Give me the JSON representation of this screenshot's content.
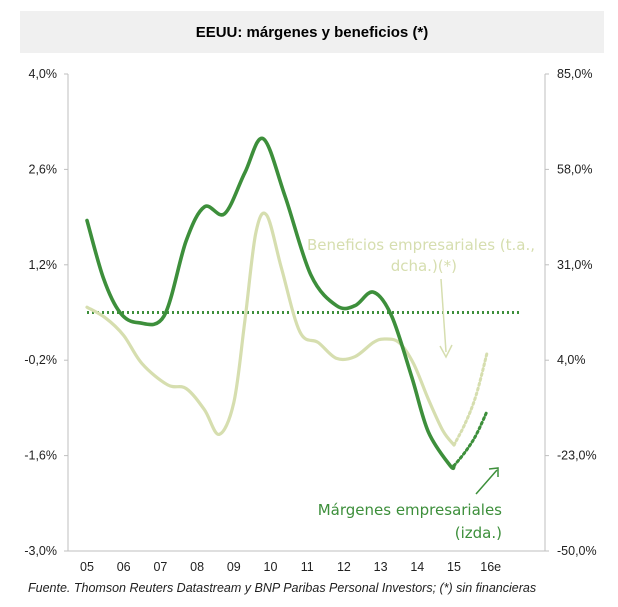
{
  "chart_data": {
    "type": "line",
    "title": "EEUU: márgenes y beneficios (*)",
    "categories": [
      "05",
      "06",
      "07",
      "08",
      "09",
      "10",
      "11",
      "12",
      "13",
      "14",
      "15",
      "16e"
    ],
    "left_axis": {
      "ylim": [
        -3.0,
        4.0
      ],
      "ticks": [
        "4,0%",
        "2,6%",
        "1,2%",
        "-0,2%",
        "-1,6%",
        "-3,0%"
      ]
    },
    "right_axis": {
      "ylim": [
        -50.0,
        85.0
      ],
      "ticks": [
        "85,0%",
        "58,0%",
        "31,0%",
        "4,0%",
        "-23,0%",
        "-50,0%"
      ]
    },
    "series": [
      {
        "name": "Márgenes empresariales (izda.)",
        "axis": "left",
        "color": "#3d8f3b",
        "x": [
          0.0,
          0.45,
          0.9,
          1.4,
          2.1,
          2.7,
          3.2,
          3.75,
          4.3,
          4.8,
          5.4,
          6.1,
          6.8,
          7.3,
          7.8,
          8.3,
          8.85,
          9.3,
          9.9,
          10.0
        ],
        "values": [
          1.85,
          1.0,
          0.5,
          0.35,
          0.45,
          1.55,
          2.05,
          1.95,
          2.55,
          3.05,
          2.2,
          1.05,
          0.6,
          0.6,
          0.8,
          0.45,
          -0.45,
          -1.25,
          -1.75,
          -1.75
        ],
        "forecast": {
          "x": [
            10.0,
            10.3,
            10.6,
            10.9
          ],
          "values": [
            -1.75,
            -1.55,
            -1.3,
            -0.95
          ]
        }
      },
      {
        "name": "Beneficios empresariales (t.a., dcha.)(*)",
        "axis": "right",
        "color": "#d6deaf",
        "x": [
          0.0,
          0.5,
          1.0,
          1.5,
          2.2,
          2.7,
          3.2,
          3.6,
          4.0,
          4.3,
          4.6,
          4.9,
          5.3,
          5.8,
          6.3,
          6.8,
          7.3,
          7.8,
          8.1,
          8.5,
          8.9,
          9.3,
          9.7,
          10.0
        ],
        "values": [
          19.0,
          16.0,
          11.0,
          3.0,
          -3.0,
          -4.0,
          -10.0,
          -17.0,
          -8.0,
          15.0,
          40.0,
          45.0,
          30.0,
          12.0,
          9.0,
          4.5,
          5.0,
          9.0,
          10.0,
          9.0,
          3.0,
          -7.0,
          -16.0,
          -20.0
        ],
        "forecast": {
          "x": [
            10.0,
            10.3,
            10.6,
            10.9
          ],
          "values": [
            -20.0,
            -14.0,
            -6.0,
            6.0
          ]
        }
      },
      {
        "name": "referencia",
        "axis": "left",
        "color": "#3d8f3b",
        "style": "dotted",
        "x": [
          0.0,
          11.8
        ],
        "values": [
          0.5,
          0.5
        ]
      }
    ],
    "annotations": {
      "beneficios_line1": "Beneficios empresariales (t.a.,",
      "beneficios_line2": "dcha.)(*)",
      "margenes_line1": "Márgenes empresariales",
      "margenes_line2": "(izda.)"
    }
  },
  "source": "Fuente. Thomson Reuters Datastream y BNP Paribas Personal Investors; (*) sin financieras"
}
